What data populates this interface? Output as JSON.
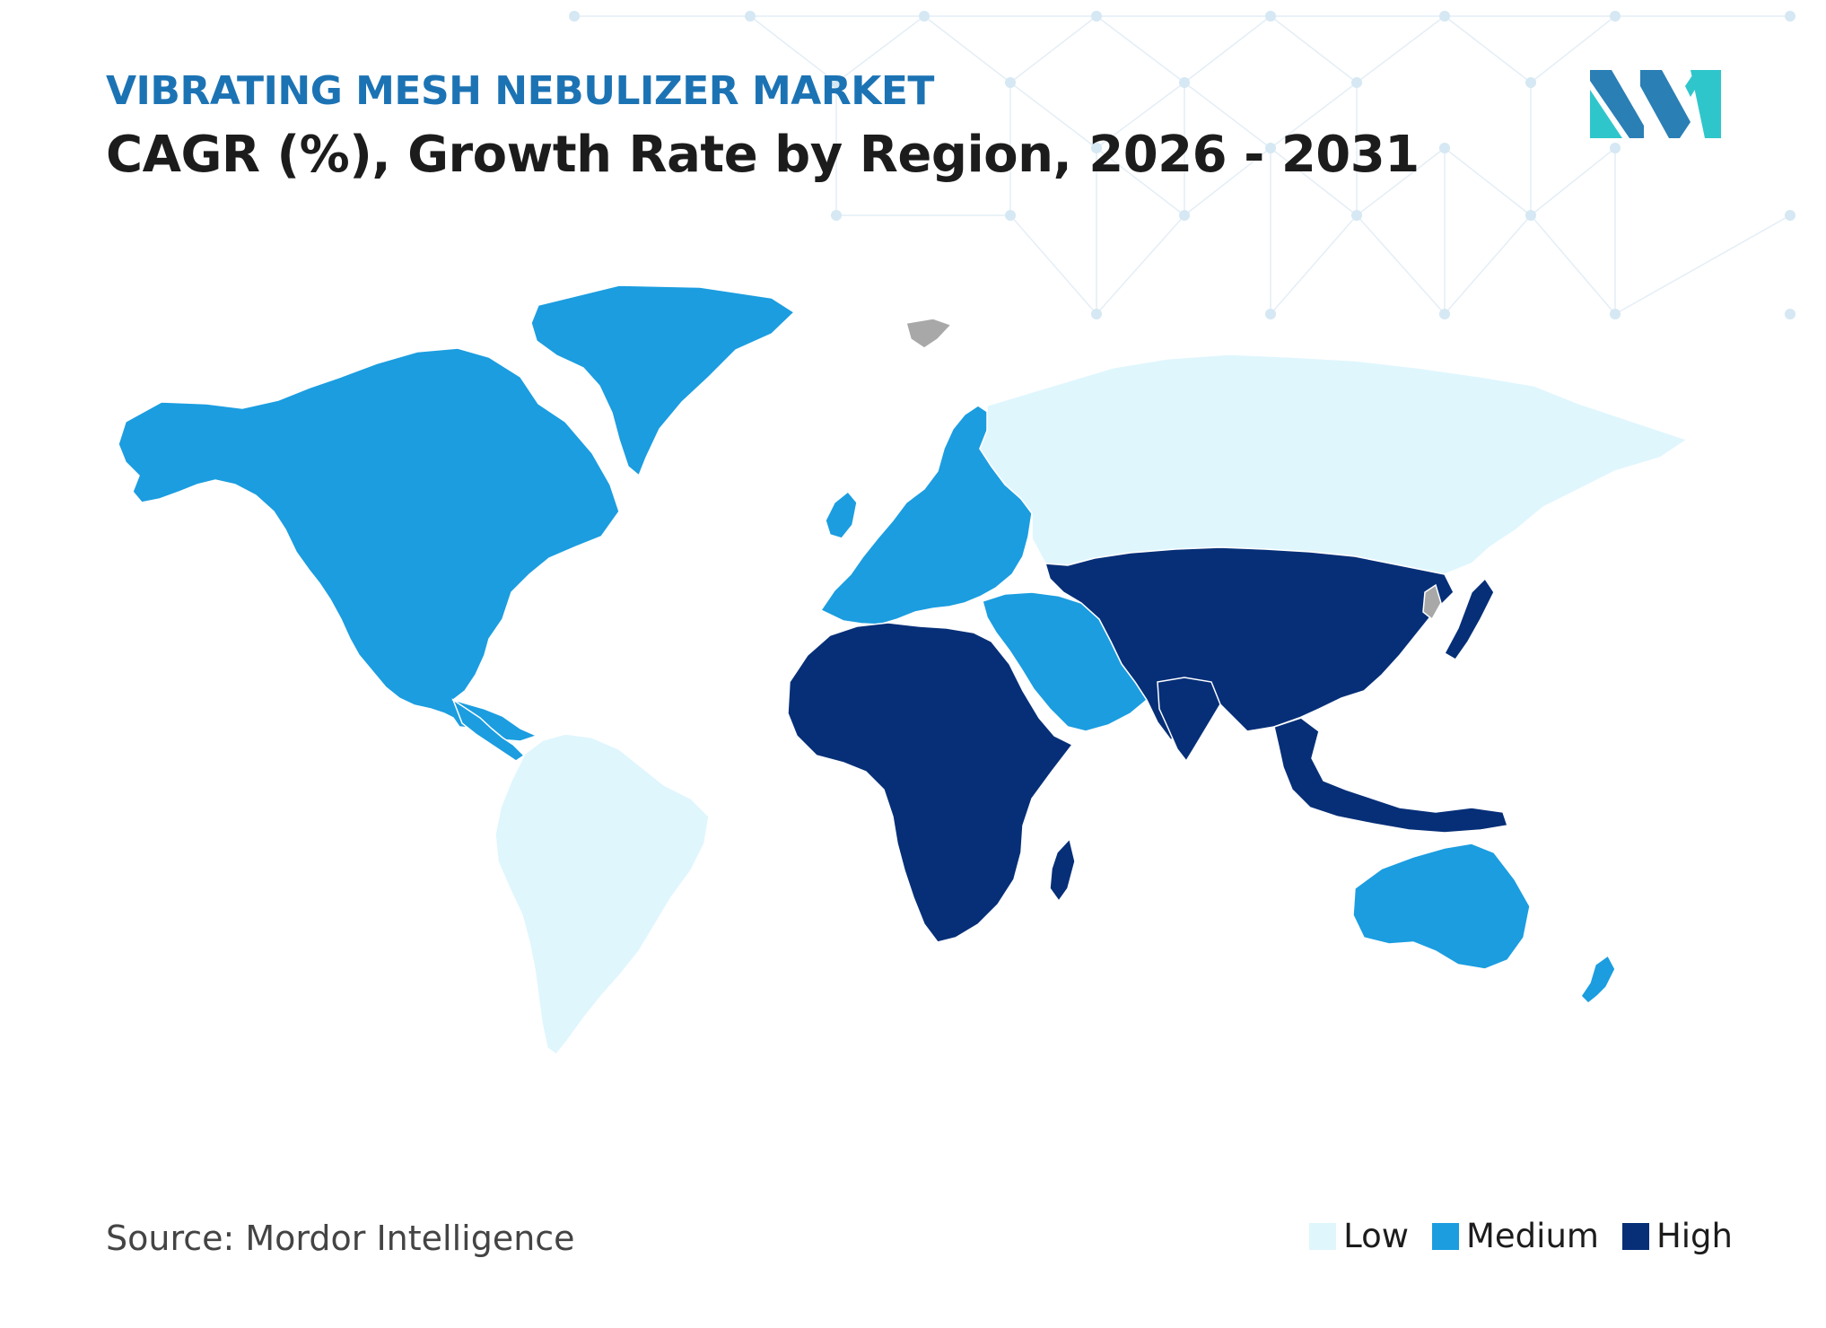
{
  "header": {
    "supertitle": "VIBRATING MESH NEBULIZER MARKET",
    "title": "CAGR (%), Growth Rate by Region, 2026 - 2031"
  },
  "footer": {
    "source": "Source: Mordor Intelligence"
  },
  "legend": {
    "items": [
      {
        "label": "Low",
        "color": "#dff6fd"
      },
      {
        "label": "Medium",
        "color": "#1b9de0"
      },
      {
        "label": "High",
        "color": "#062f78"
      }
    ]
  },
  "colors": {
    "supertitle": "#1c73b4",
    "title": "#1c1c1c",
    "text": "#444444",
    "no_data": "#a8a8a8",
    "logo_primary": "#2a7fb5",
    "logo_secondary": "#2fc6cb"
  },
  "regions": [
    {
      "id": "north-america",
      "level": "Medium"
    },
    {
      "id": "greenland",
      "level": "Medium"
    },
    {
      "id": "south-america",
      "level": "Low"
    },
    {
      "id": "europe",
      "level": "Medium"
    },
    {
      "id": "russia",
      "level": "Low"
    },
    {
      "id": "middle-east",
      "level": "Medium"
    },
    {
      "id": "africa",
      "level": "High"
    },
    {
      "id": "asia",
      "level": "High"
    },
    {
      "id": "japan",
      "level": "High"
    },
    {
      "id": "southeast-asia",
      "level": "High"
    },
    {
      "id": "australia",
      "level": "Medium"
    },
    {
      "id": "new-zealand",
      "level": "Medium"
    }
  ]
}
